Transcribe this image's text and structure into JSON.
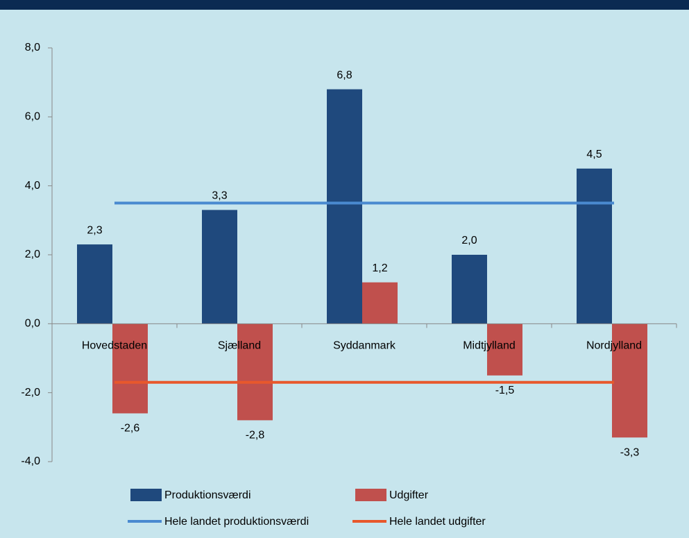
{
  "chart_data": {
    "type": "bar",
    "categories": [
      "Hovedstaden",
      "Sjælland",
      "Syddanmark",
      "Midtjylland",
      "Nordjylland"
    ],
    "series": [
      {
        "name": "Produktionsværdi",
        "color": "#1f497d",
        "values": [
          2.3,
          3.3,
          6.8,
          2.0,
          4.5
        ],
        "value_labels": [
          "2,3",
          "3,3",
          "6,8",
          "2,0",
          "4,5"
        ]
      },
      {
        "name": "Udgifter",
        "color": "#c0504d",
        "values": [
          -2.6,
          -2.8,
          1.2,
          -1.5,
          -3.3
        ],
        "value_labels": [
          "-2,6",
          "-2,8",
          "1,2",
          "-1,5",
          "-3,3"
        ]
      }
    ],
    "reference_lines": [
      {
        "name": "Hele landet produktionsværdi",
        "color": "#4a8ad0",
        "value": 3.5
      },
      {
        "name": "Hele landet udgifter",
        "color": "#e8582c",
        "value": -1.7
      }
    ],
    "ylim": [
      -4,
      8
    ],
    "yticks": [
      {
        "value": -4,
        "label": "-4,0"
      },
      {
        "value": -2,
        "label": "-2,0"
      },
      {
        "value": 0,
        "label": "0,0"
      },
      {
        "value": 2,
        "label": "2,0"
      },
      {
        "value": 4,
        "label": "4,0"
      },
      {
        "value": 6,
        "label": "6,0"
      },
      {
        "value": 8,
        "label": "8,0"
      }
    ]
  }
}
